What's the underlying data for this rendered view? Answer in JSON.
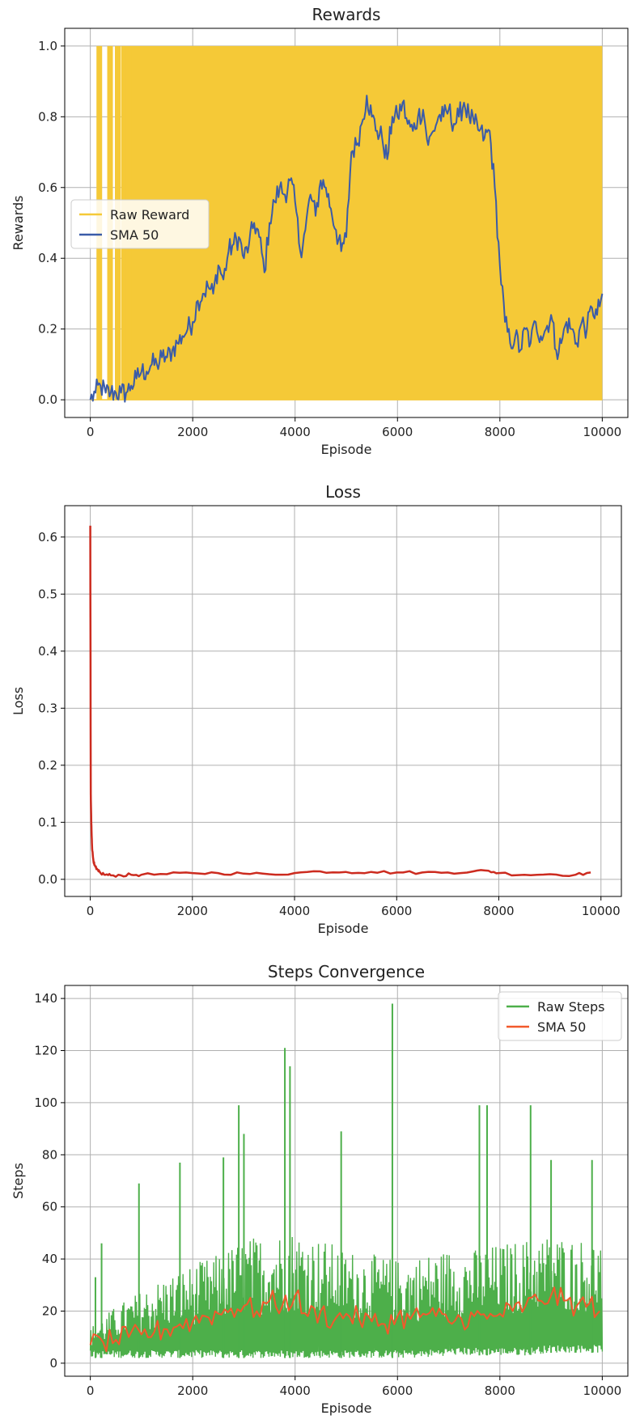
{
  "chart_data": [
    {
      "type": "line",
      "title": "Rewards",
      "xlabel": "Episode",
      "ylabel": "Rewards",
      "xlim": [
        -500,
        10500
      ],
      "ylim": [
        -0.05,
        1.05
      ],
      "xticks": [
        0,
        2000,
        4000,
        6000,
        8000,
        10000
      ],
      "xtick_labels": [
        "0",
        "2000",
        "4000",
        "6000",
        "8000",
        "10000"
      ],
      "yticks": [
        0.0,
        0.2,
        0.4,
        0.6,
        0.8,
        1.0
      ],
      "ytick_labels": [
        "0.0",
        "0.2",
        "0.4",
        "0.6",
        "0.8",
        "1.0"
      ],
      "grid": true,
      "legend": "center-left",
      "series": [
        {
          "name": "Raw Reward",
          "color": "#f5c937",
          "kind": "binary-band",
          "values": [
            0,
            1
          ],
          "x_range": [
            0,
            10000
          ],
          "early_spikes_x": [
            120,
            330,
            480,
            600,
            700
          ]
        },
        {
          "name": "SMA 50",
          "color": "#3a5ba8",
          "x": [
            0,
            100,
            200,
            300,
            400,
            500,
            600,
            700,
            800,
            900,
            1000,
            1100,
            1200,
            1300,
            1400,
            1500,
            1600,
            1700,
            1800,
            1900,
            2000,
            2100,
            2200,
            2300,
            2400,
            2500,
            2600,
            2700,
            2800,
            2900,
            3000,
            3100,
            3200,
            3300,
            3400,
            3500,
            3600,
            3700,
            3800,
            3900,
            4000,
            4100,
            4200,
            4300,
            4400,
            4500,
            4600,
            4700,
            4800,
            4900,
            5000,
            5100,
            5200,
            5300,
            5400,
            5500,
            5600,
            5700,
            5800,
            5900,
            6000,
            6100,
            6200,
            6300,
            6400,
            6500,
            6600,
            6700,
            6800,
            6900,
            7000,
            7100,
            7200,
            7300,
            7400,
            7500,
            7600,
            7700,
            7800,
            7900,
            8000,
            8100,
            8200,
            8300,
            8400,
            8500,
            8600,
            8700,
            8800,
            8900,
            9000,
            9100,
            9200,
            9300,
            9400,
            9500,
            9600,
            9700,
            9800,
            9900,
            10000
          ],
          "values": [
            0.0,
            0.02,
            0.04,
            0.02,
            0.02,
            0.02,
            0.02,
            0.02,
            0.04,
            0.06,
            0.08,
            0.08,
            0.1,
            0.1,
            0.12,
            0.12,
            0.14,
            0.16,
            0.18,
            0.2,
            0.22,
            0.28,
            0.3,
            0.32,
            0.3,
            0.38,
            0.34,
            0.42,
            0.44,
            0.46,
            0.4,
            0.44,
            0.5,
            0.46,
            0.36,
            0.5,
            0.56,
            0.6,
            0.58,
            0.62,
            0.56,
            0.42,
            0.48,
            0.58,
            0.52,
            0.62,
            0.6,
            0.54,
            0.48,
            0.42,
            0.46,
            0.7,
            0.72,
            0.78,
            0.86,
            0.8,
            0.76,
            0.74,
            0.68,
            0.8,
            0.8,
            0.84,
            0.78,
            0.76,
            0.8,
            0.82,
            0.72,
            0.76,
            0.8,
            0.8,
            0.82,
            0.78,
            0.8,
            0.84,
            0.8,
            0.78,
            0.76,
            0.74,
            0.76,
            0.6,
            0.38,
            0.22,
            0.16,
            0.18,
            0.14,
            0.2,
            0.16,
            0.22,
            0.18,
            0.2,
            0.24,
            0.14,
            0.16,
            0.22,
            0.2,
            0.16,
            0.22,
            0.2,
            0.26,
            0.24,
            0.3
          ]
        }
      ]
    },
    {
      "type": "line",
      "title": "Loss",
      "xlabel": "Episode",
      "ylabel": "Loss",
      "xlim": [
        -500,
        10400
      ],
      "ylim": [
        -0.03,
        0.655
      ],
      "xticks": [
        0,
        2000,
        4000,
        6000,
        8000,
        10000
      ],
      "xtick_labels": [
        "0",
        "2000",
        "4000",
        "6000",
        "8000",
        "10000"
      ],
      "yticks": [
        0.0,
        0.1,
        0.2,
        0.3,
        0.4,
        0.5,
        0.6
      ],
      "ytick_labels": [
        "0.0",
        "0.1",
        "0.2",
        "0.3",
        "0.4",
        "0.5",
        "0.6"
      ],
      "grid": true,
      "series": [
        {
          "color": "#cc2b1f",
          "x": [
            0,
            10,
            20,
            30,
            40,
            60,
            80,
            120,
            160,
            200,
            300,
            400,
            600,
            800,
            1000,
            1500,
            2000,
            2500,
            3000,
            3500,
            4000,
            4500,
            5000,
            5500,
            6000,
            6500,
            7000,
            7500,
            7800,
            8000,
            8500,
            9000,
            9500,
            9800
          ],
          "values": [
            0.62,
            0.15,
            0.1,
            0.07,
            0.05,
            0.035,
            0.025,
            0.018,
            0.014,
            0.011,
            0.008,
            0.007,
            0.007,
            0.008,
            0.008,
            0.009,
            0.011,
            0.011,
            0.01,
            0.009,
            0.011,
            0.014,
            0.013,
            0.013,
            0.012,
            0.012,
            0.012,
            0.014,
            0.015,
            0.011,
            0.008,
            0.009,
            0.008,
            0.012
          ]
        }
      ]
    },
    {
      "type": "line",
      "title": "Steps Convergence",
      "xlabel": "Episode",
      "ylabel": "Steps",
      "xlim": [
        -500,
        10500
      ],
      "ylim": [
        -5,
        145
      ],
      "xticks": [
        0,
        2000,
        4000,
        6000,
        8000,
        10000
      ],
      "xtick_labels": [
        "0",
        "2000",
        "4000",
        "6000",
        "8000",
        "10000"
      ],
      "yticks": [
        0,
        20,
        40,
        60,
        80,
        100,
        120,
        140
      ],
      "ytick_labels": [
        "0",
        "20",
        "40",
        "60",
        "80",
        "100",
        "120",
        "140"
      ],
      "grid": true,
      "legend": "top-right",
      "series": [
        {
          "name": "Raw Steps",
          "color": "#4daf4a",
          "kind": "noisy-band",
          "x": [
            0,
            500,
            1000,
            1500,
            2000,
            2500,
            3000,
            3500,
            4000,
            4500,
            5000,
            5500,
            6000,
            6500,
            7000,
            7500,
            8000,
            8500,
            9000,
            9500,
            10000
          ],
          "band_low": [
            2,
            2,
            2,
            2,
            2,
            2,
            2,
            2,
            2,
            2,
            2,
            2,
            2,
            2,
            3,
            3,
            3,
            3,
            4,
            4,
            4
          ],
          "band_high": [
            14,
            22,
            28,
            34,
            38,
            42,
            48,
            50,
            52,
            48,
            44,
            42,
            40,
            42,
            44,
            44,
            46,
            48,
            50,
            48,
            48
          ],
          "peaks": [
            [
              100,
              33
            ],
            [
              220,
              46
            ],
            [
              950,
              69
            ],
            [
              1750,
              77
            ],
            [
              2600,
              79
            ],
            [
              2900,
              99
            ],
            [
              3000,
              88
            ],
            [
              3800,
              121
            ],
            [
              3900,
              114
            ],
            [
              4900,
              89
            ],
            [
              5900,
              138
            ],
            [
              7600,
              99
            ],
            [
              7750,
              99
            ],
            [
              8600,
              99
            ],
            [
              9000,
              78
            ],
            [
              9800,
              78
            ]
          ]
        },
        {
          "name": "SMA 50",
          "color": "#f2592b",
          "x": [
            0,
            250,
            500,
            750,
            1000,
            1250,
            1500,
            1750,
            2000,
            2250,
            2500,
            2750,
            3000,
            3250,
            3500,
            3750,
            4000,
            4250,
            4500,
            4750,
            5000,
            5250,
            5500,
            5750,
            6000,
            6250,
            6500,
            6750,
            7000,
            7250,
            7500,
            7750,
            8000,
            8250,
            8500,
            8750,
            9000,
            9250,
            9500,
            9750,
            9950
          ],
          "values": [
            7,
            8,
            9,
            10,
            11,
            12,
            13,
            15,
            16,
            18,
            19,
            21,
            22,
            20,
            24,
            22,
            26,
            18,
            20,
            16,
            19,
            17,
            16,
            15,
            18,
            17,
            19,
            18,
            16,
            17,
            18,
            17,
            19,
            20,
            22,
            24,
            26,
            24,
            22,
            23,
            20
          ]
        }
      ]
    }
  ]
}
